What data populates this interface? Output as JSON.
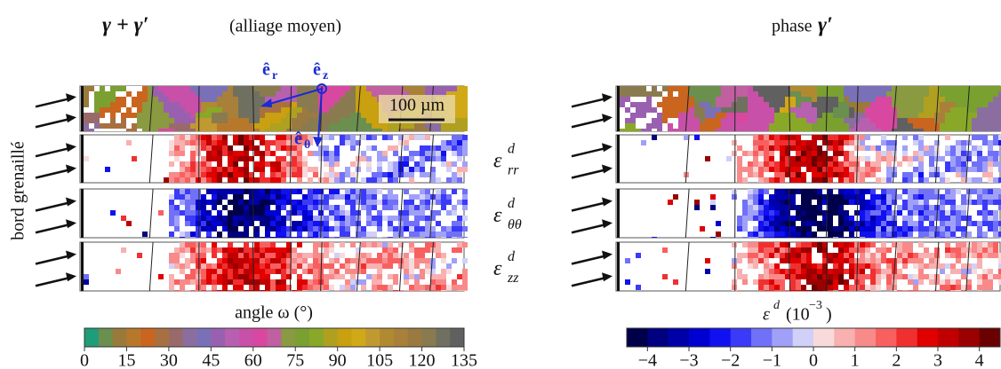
{
  "title_left": {
    "math": "γ + γ′",
    "text": "(alliage moyen)"
  },
  "title_right": {
    "text": "phase",
    "math": "γ′"
  },
  "side_label": "bord grenaillé",
  "axes": {
    "er": {
      "base": "ê",
      "sub": "r"
    },
    "ez": {
      "base": "ê",
      "sub": "z"
    },
    "etheta": {
      "base": "ê",
      "sub": "θ"
    }
  },
  "scale_bar": "100 µm",
  "rows": [
    {
      "symbol": "ε",
      "sup": "d",
      "sub": "rr"
    },
    {
      "symbol": "ε",
      "sup": "d",
      "sub": "θθ"
    },
    {
      "symbol": "ε",
      "sup": "d",
      "sub": "zz"
    }
  ],
  "colorbar_angle": {
    "label": "angle ω (°)",
    "lim": [
      0,
      135
    ],
    "ticks": [
      0,
      15,
      30,
      45,
      60,
      75,
      90,
      105,
      120,
      135
    ],
    "colors": [
      "#1f9c7a",
      "#6a8f4e",
      "#9a7a3a",
      "#b8782c",
      "#c9651f",
      "#a87040",
      "#9a6a6a",
      "#8b6ea0",
      "#7a70b8",
      "#9a60b0",
      "#b860b0",
      "#c850a8",
      "#d848a0",
      "#c060a0",
      "#8a9a40",
      "#7aa030",
      "#8aa828",
      "#b0a020",
      "#c8a010",
      "#d0a818",
      "#c09a30",
      "#b08a30",
      "#a8803a",
      "#9a7a40",
      "#8a7a50",
      "#707060",
      "#606060"
    ]
  },
  "colorbar_strain": {
    "label": {
      "symbol": "ε",
      "sup": "d",
      "unit": "(10",
      "exp": "−3",
      ")": ")"
    },
    "lim": [
      -4.5,
      4.5
    ],
    "ticks": [
      {
        "value": -4,
        "label": "−4"
      },
      {
        "value": -3,
        "label": "−3"
      },
      {
        "value": -2,
        "label": "−2"
      },
      {
        "value": -1,
        "label": "−1"
      },
      0,
      1,
      2,
      3,
      4
    ],
    "colors": [
      "#00004a",
      "#000080",
      "#0000a8",
      "#0000d0",
      "#1010f0",
      "#3a3af8",
      "#7070f8",
      "#a0a0f8",
      "#d0d0f8",
      "#f8dada",
      "#f8b0b0",
      "#f88a8a",
      "#f86060",
      "#f03030",
      "#e00000",
      "#c00000",
      "#9a0000",
      "#6a0000"
    ]
  }
}
